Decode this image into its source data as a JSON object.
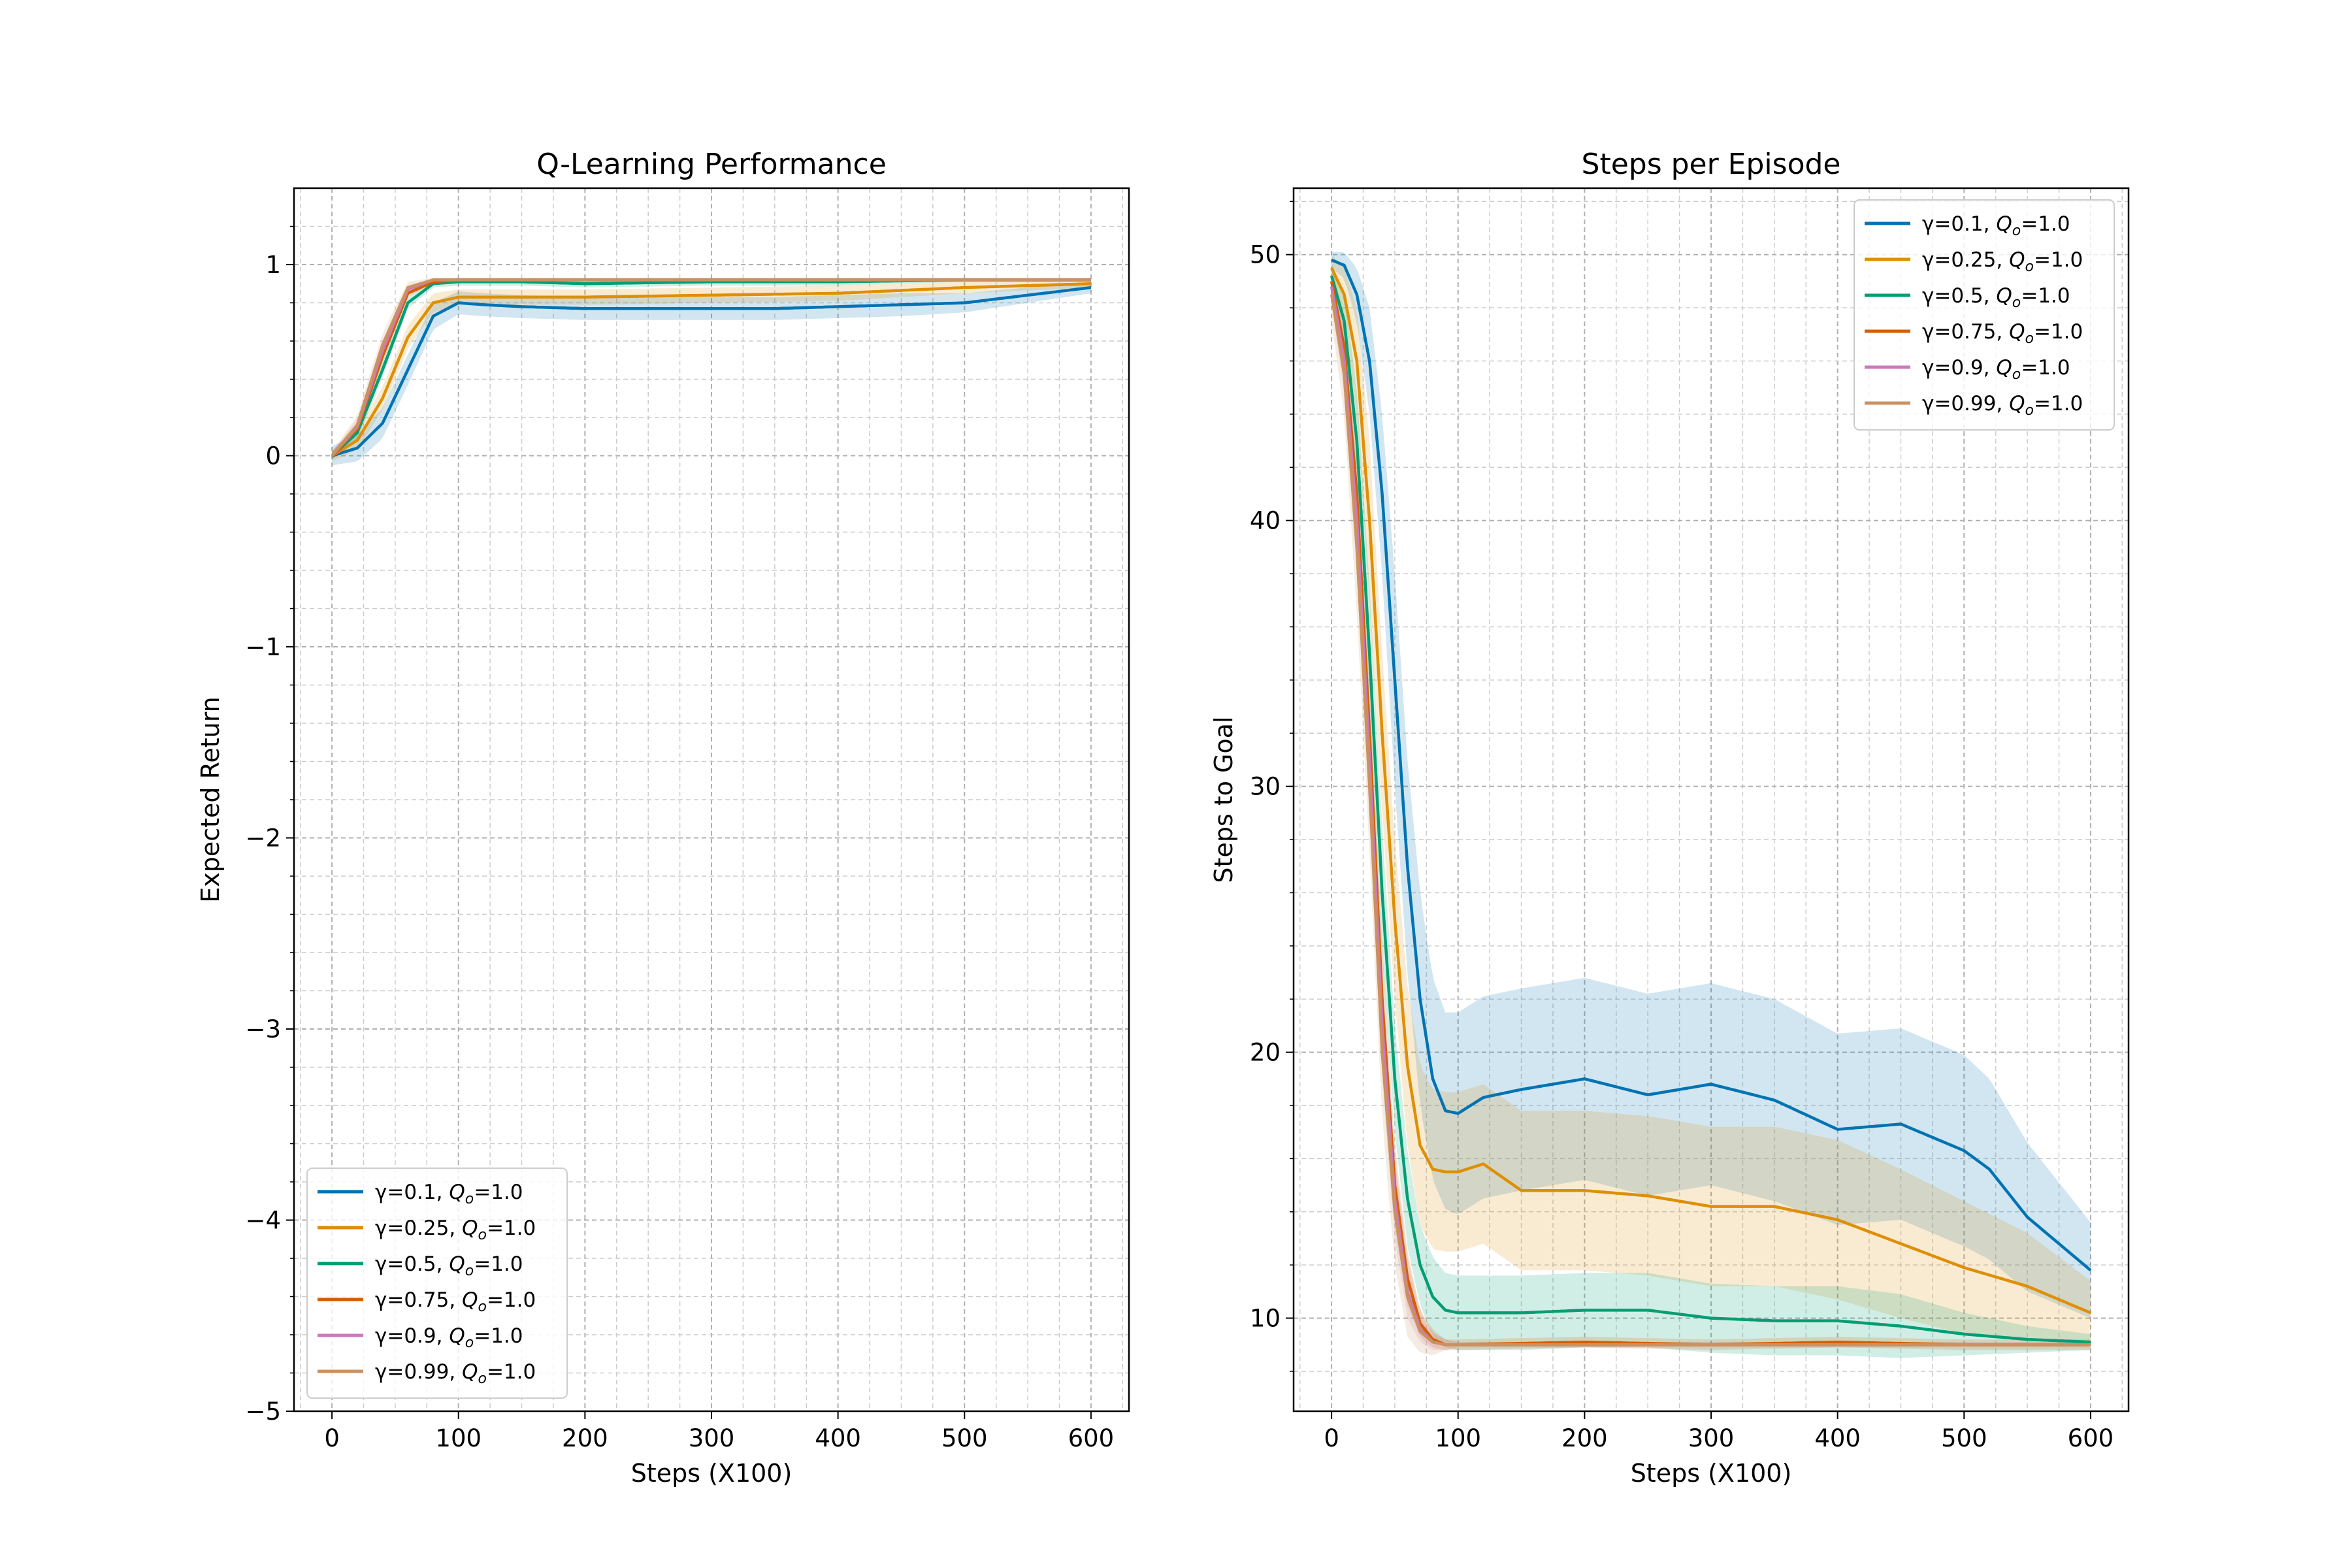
{
  "chart_data": [
    {
      "type": "line",
      "title": "Q-Learning Performance",
      "xlabel": "Steps (X100)",
      "ylabel": "Expected Return",
      "xlim": [
        -30,
        630
      ],
      "ylim": [
        -5,
        1.4
      ],
      "xticks": [
        0,
        100,
        200,
        300,
        400,
        500,
        600
      ],
      "xtick_labels": [
        "0",
        "100",
        "200",
        "300",
        "400",
        "500",
        "600"
      ],
      "yticks": [
        -5,
        -4,
        -3,
        -2,
        -1,
        0,
        1
      ],
      "ytick_labels": [
        "−5",
        "−4",
        "−3",
        "−2",
        "−1",
        "0",
        "1"
      ],
      "grid": true,
      "shaded_bands": true,
      "legend_position": "lower-left",
      "series": [
        {
          "label": "γ=0.1, ",
          "q_label": "=1.0",
          "color": "#0173b2",
          "x": [
            0,
            20,
            40,
            60,
            80,
            100,
            120,
            150,
            200,
            250,
            300,
            350,
            400,
            450,
            500,
            550,
            600
          ],
          "values": [
            0.0,
            0.04,
            0.17,
            0.45,
            0.73,
            0.8,
            0.79,
            0.78,
            0.77,
            0.77,
            0.77,
            0.77,
            0.78,
            0.79,
            0.8,
            0.84,
            0.88
          ],
          "band": [
            0.05,
            0.07,
            0.08,
            0.08,
            0.07,
            0.06,
            0.06,
            0.06,
            0.06,
            0.06,
            0.06,
            0.06,
            0.06,
            0.06,
            0.05,
            0.04,
            0.03
          ]
        },
        {
          "label": "γ=0.25, ",
          "q_label": "=1.0",
          "color": "#de8f05",
          "x": [
            0,
            20,
            40,
            60,
            80,
            100,
            150,
            200,
            300,
            400,
            500,
            600
          ],
          "values": [
            0.0,
            0.08,
            0.3,
            0.62,
            0.8,
            0.83,
            0.83,
            0.83,
            0.84,
            0.85,
            0.88,
            0.9
          ],
          "band": [
            0.03,
            0.05,
            0.06,
            0.06,
            0.05,
            0.04,
            0.04,
            0.04,
            0.04,
            0.04,
            0.03,
            0.02
          ]
        },
        {
          "label": "γ=0.5, ",
          "q_label": "=1.0",
          "color": "#029e73",
          "x": [
            0,
            20,
            40,
            60,
            80,
            100,
            150,
            200,
            300,
            400,
            500,
            600
          ],
          "values": [
            0.0,
            0.12,
            0.45,
            0.8,
            0.9,
            0.91,
            0.91,
            0.9,
            0.91,
            0.91,
            0.92,
            0.92
          ],
          "band": [
            0.02,
            0.04,
            0.04,
            0.03,
            0.02,
            0.02,
            0.02,
            0.02,
            0.02,
            0.02,
            0.01,
            0.01
          ]
        },
        {
          "label": "γ=0.75, ",
          "q_label": "=1.0",
          "color": "#d55e00",
          "x": [
            0,
            20,
            40,
            60,
            80,
            100,
            200,
            300,
            400,
            500,
            600
          ],
          "values": [
            0.0,
            0.14,
            0.52,
            0.85,
            0.91,
            0.92,
            0.92,
            0.92,
            0.92,
            0.92,
            0.92
          ],
          "band": [
            0.02,
            0.03,
            0.04,
            0.02,
            0.01,
            0.01,
            0.01,
            0.01,
            0.01,
            0.01,
            0.01
          ]
        },
        {
          "label": "γ=0.9, ",
          "q_label": "=1.0",
          "color": "#cc78bc",
          "x": [
            0,
            20,
            40,
            60,
            80,
            100,
            200,
            300,
            400,
            500,
            600
          ],
          "values": [
            0.0,
            0.15,
            0.55,
            0.87,
            0.92,
            0.92,
            0.92,
            0.92,
            0.92,
            0.92,
            0.92
          ],
          "band": [
            0.02,
            0.04,
            0.04,
            0.02,
            0.01,
            0.01,
            0.01,
            0.01,
            0.01,
            0.01,
            0.01
          ]
        },
        {
          "label": "γ=0.99, ",
          "q_label": "=1.0",
          "color": "#ca9161",
          "x": [
            0,
            20,
            40,
            60,
            80,
            100,
            200,
            300,
            400,
            500,
            600
          ],
          "values": [
            0.0,
            0.16,
            0.58,
            0.88,
            0.92,
            0.92,
            0.92,
            0.92,
            0.92,
            0.92,
            0.92
          ],
          "band": [
            0.02,
            0.05,
            0.06,
            0.03,
            0.01,
            0.01,
            0.01,
            0.01,
            0.01,
            0.01,
            0.01
          ]
        }
      ]
    },
    {
      "type": "line",
      "title": "Steps per Episode",
      "xlabel": "Steps (X100)",
      "ylabel": "Steps to Goal",
      "xlim": [
        -30,
        630
      ],
      "ylim": [
        6.5,
        52.5
      ],
      "xticks": [
        0,
        100,
        200,
        300,
        400,
        500,
        600
      ],
      "xtick_labels": [
        "0",
        "100",
        "200",
        "300",
        "400",
        "500",
        "600"
      ],
      "yticks": [
        10,
        20,
        30,
        40,
        50
      ],
      "ytick_labels": [
        "10",
        "20",
        "30",
        "40",
        "50"
      ],
      "grid": true,
      "shaded_bands": true,
      "legend_position": "upper-right",
      "series": [
        {
          "label": "γ=0.1, ",
          "q_label": "=1.0",
          "color": "#0173b2",
          "x": [
            0,
            10,
            20,
            30,
            40,
            50,
            60,
            70,
            80,
            90,
            100,
            120,
            150,
            200,
            250,
            300,
            350,
            400,
            450,
            500,
            520,
            550,
            600
          ],
          "values": [
            49.8,
            49.6,
            48.5,
            46.0,
            41.0,
            34.0,
            27.0,
            22.0,
            19.0,
            17.8,
            17.7,
            18.3,
            18.6,
            19.0,
            18.4,
            18.8,
            18.2,
            17.1,
            17.3,
            16.3,
            15.6,
            13.8,
            11.8
          ],
          "band": [
            0.3,
            0.5,
            1.0,
            2.0,
            3.0,
            4.0,
            4.0,
            4.0,
            3.8,
            3.7,
            3.8,
            3.8,
            3.8,
            3.8,
            3.8,
            3.8,
            3.8,
            3.6,
            3.6,
            3.6,
            3.4,
            2.8,
            1.8
          ]
        },
        {
          "label": "γ=0.25, ",
          "q_label": "=1.0",
          "color": "#de8f05",
          "x": [
            0,
            10,
            20,
            30,
            40,
            50,
            60,
            70,
            80,
            90,
            100,
            120,
            150,
            200,
            250,
            300,
            350,
            400,
            450,
            500,
            550,
            600
          ],
          "values": [
            49.5,
            48.5,
            46.0,
            40.0,
            32.0,
            25.0,
            19.5,
            16.5,
            15.6,
            15.5,
            15.5,
            15.8,
            14.8,
            14.8,
            14.6,
            14.2,
            14.2,
            13.7,
            12.8,
            11.9,
            11.2,
            10.2
          ],
          "band": [
            0.5,
            1.0,
            2.0,
            3.0,
            3.0,
            3.0,
            3.0,
            3.0,
            3.0,
            3.0,
            3.0,
            3.0,
            3.0,
            3.0,
            3.0,
            3.0,
            3.0,
            3.0,
            2.8,
            2.5,
            2.0,
            1.2
          ]
        },
        {
          "label": "γ=0.5, ",
          "q_label": "=1.0",
          "color": "#029e73",
          "x": [
            0,
            10,
            20,
            30,
            40,
            50,
            60,
            70,
            80,
            90,
            100,
            150,
            200,
            250,
            300,
            350,
            400,
            450,
            500,
            550,
            600
          ],
          "values": [
            49.2,
            47.5,
            43.0,
            35.0,
            26.0,
            19.0,
            14.5,
            12.0,
            10.8,
            10.3,
            10.2,
            10.2,
            10.3,
            10.3,
            10.0,
            9.9,
            9.9,
            9.7,
            9.4,
            9.2,
            9.1
          ],
          "band": [
            0.5,
            1.0,
            2.0,
            2.5,
            2.5,
            2.0,
            1.8,
            1.5,
            1.5,
            1.4,
            1.4,
            1.4,
            1.4,
            1.4,
            1.3,
            1.3,
            1.3,
            1.2,
            0.8,
            0.5,
            0.3
          ]
        },
        {
          "label": "γ=0.75, ",
          "q_label": "=1.0",
          "color": "#d55e00",
          "x": [
            0,
            10,
            20,
            30,
            40,
            50,
            60,
            70,
            80,
            90,
            100,
            200,
            300,
            400,
            500,
            600
          ],
          "values": [
            49.0,
            46.5,
            41.0,
            32.0,
            22.0,
            15.0,
            11.5,
            9.8,
            9.2,
            9.0,
            9.0,
            9.1,
            9.0,
            9.1,
            9.0,
            9.0
          ],
          "band": [
            0.6,
            1.2,
            2.0,
            2.0,
            2.0,
            1.5,
            1.0,
            0.5,
            0.3,
            0.2,
            0.2,
            0.2,
            0.2,
            0.2,
            0.2,
            0.2
          ]
        },
        {
          "label": "γ=0.9, ",
          "q_label": "=1.0",
          "color": "#cc78bc",
          "x": [
            0,
            10,
            20,
            30,
            40,
            50,
            60,
            70,
            80,
            90,
            100,
            200,
            300,
            400,
            500,
            600
          ],
          "values": [
            48.8,
            46.0,
            40.0,
            31.0,
            21.0,
            14.5,
            11.0,
            9.6,
            9.1,
            9.0,
            9.0,
            9.0,
            9.0,
            9.0,
            9.0,
            9.0
          ],
          "band": [
            0.6,
            1.2,
            2.0,
            2.0,
            2.0,
            1.5,
            1.0,
            0.5,
            0.3,
            0.2,
            0.1,
            0.1,
            0.1,
            0.1,
            0.1,
            0.1
          ]
        },
        {
          "label": "γ=0.99, ",
          "q_label": "=1.0",
          "color": "#ca9161",
          "x": [
            0,
            10,
            20,
            30,
            40,
            50,
            60,
            70,
            80,
            90,
            100,
            200,
            300,
            400,
            500,
            600
          ],
          "values": [
            48.5,
            45.5,
            39.0,
            30.0,
            20.0,
            14.0,
            10.8,
            9.5,
            9.1,
            9.0,
            9.0,
            9.0,
            9.0,
            9.0,
            9.0,
            9.0
          ],
          "band": [
            1.0,
            1.5,
            2.5,
            2.5,
            2.5,
            2.0,
            1.5,
            0.8,
            0.5,
            0.2,
            0.1,
            0.1,
            0.1,
            0.1,
            0.1,
            0.1
          ]
        }
      ]
    }
  ]
}
